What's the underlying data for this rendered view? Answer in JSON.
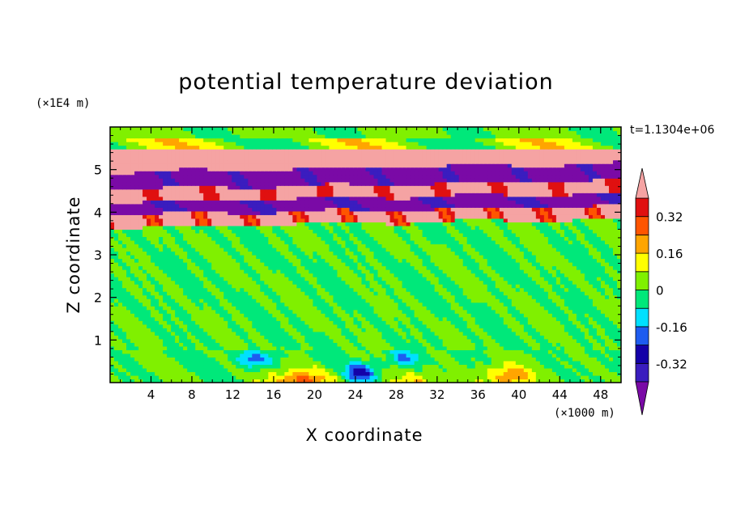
{
  "chart_data": {
    "type": "heatmap",
    "title": "potential temperature deviation",
    "xlabel": "X coordinate",
    "ylabel": "Z coordinate",
    "x_unit_label": "(×1000 m)",
    "y_unit_label": "(×1E4 m)",
    "time_label": "t=1.1304e+06",
    "xlim": [
      0,
      50
    ],
    "ylim": [
      0,
      6
    ],
    "x_ticks": [
      "4",
      "8",
      "12",
      "16",
      "20",
      "24",
      "28",
      "32",
      "36",
      "40",
      "44",
      "48"
    ],
    "y_ticks": [
      "1",
      "2",
      "3",
      "4",
      "5"
    ],
    "colorbar": {
      "levels": [
        -0.4,
        -0.32,
        -0.24,
        -0.16,
        -0.08,
        0,
        0.08,
        0.16,
        0.24,
        0.32,
        0.4
      ],
      "colors": [
        "#3a1dbf",
        "#1400a8",
        "#1e5cf0",
        "#00e0ff",
        "#00e87a",
        "#80f000",
        "#ffff00",
        "#ffa500",
        "#ff5500",
        "#e01010"
      ],
      "under_color": "#7a0aa6",
      "over_color": "#f5a3a3",
      "tick_labels": [
        "0.32",
        "0.16",
        "0",
        "-0.16",
        "-0.32"
      ],
      "tick_values": [
        0.32,
        0.16,
        0,
        -0.16,
        -0.32
      ]
    },
    "field_summary": [
      {
        "z_range": [
          5.0,
          5.5
        ],
        "x_range": [
          0,
          50
        ],
        "value": "over (>0.40)"
      },
      {
        "z_range": [
          4.6,
          5.0
        ],
        "x_range": [
          0,
          50
        ],
        "value": "under (<-0.40)"
      },
      {
        "z_range": [
          4.3,
          4.6
        ],
        "x_range": [
          0,
          50
        ],
        "value": "over (>0.40)"
      },
      {
        "z_range": [
          4.0,
          4.3
        ],
        "x_range": [
          0,
          50
        ],
        "value": "under (<-0.40)"
      },
      {
        "z_range": [
          3.7,
          4.0
        ],
        "x_range": [
          0,
          50
        ],
        "value": "over (>0.40)"
      },
      {
        "z_range": [
          0.7,
          3.7
        ],
        "x_range": [
          0,
          50
        ],
        "value": "near 0 (-0.08 to 0.08)"
      },
      {
        "z_range": [
          0,
          0.7
        ],
        "x_range": [
          12,
          44
        ],
        "value": "mixed (-0.32 to 0.32)"
      }
    ]
  }
}
